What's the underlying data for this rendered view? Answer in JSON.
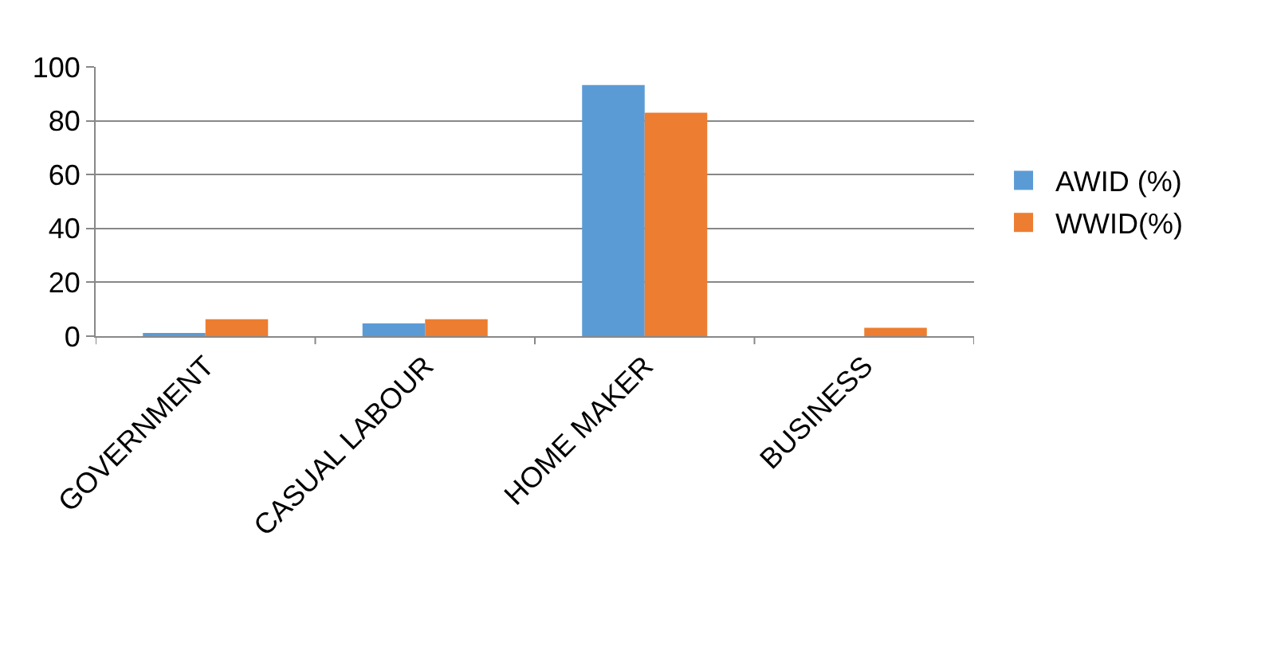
{
  "chart_data": {
    "type": "bar",
    "categories": [
      "GOVERNMENT",
      "CASUAL LABOUR",
      "HOME MAKER",
      "BUSINESS"
    ],
    "series": [
      {
        "name": "AWID (%)",
        "color": "#5b9bd5",
        "values": [
          1.2,
          4.7,
          93.3,
          0
        ]
      },
      {
        "name": "WWID(%)",
        "color": "#ed7d31",
        "values": [
          6.3,
          6.3,
          83.0,
          3.1
        ]
      }
    ],
    "ylim": [
      0,
      100
    ],
    "yticks": [
      0,
      20,
      40,
      60,
      80,
      100
    ],
    "grid": "y",
    "legend": "right"
  }
}
